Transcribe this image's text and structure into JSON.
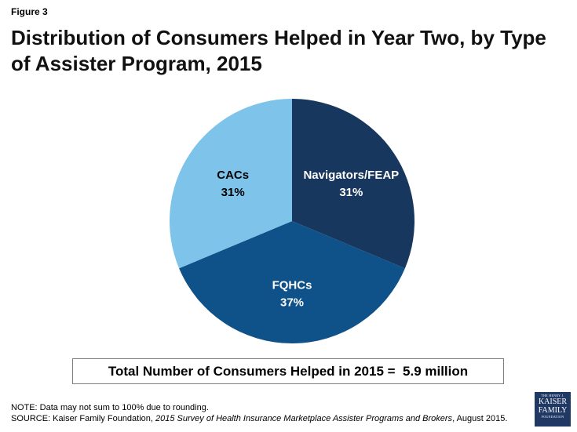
{
  "figure_label": "Figure 3",
  "title": "Distribution of Consumers Helped in Year Two, by Type of Assister Program, 2015",
  "chart_data": {
    "type": "pie",
    "title": "",
    "slices": [
      {
        "label": "Navigators/FEAP",
        "value": 31,
        "display": "31%",
        "color": "#17375e",
        "label_color": "#ffffff"
      },
      {
        "label": "FQHCs",
        "value": 37,
        "display": "37%",
        "color": "#0f5189",
        "label_color": "#ffffff"
      },
      {
        "label": "CACs",
        "value": 31,
        "display": "31%",
        "color": "#7dc3ea",
        "label_color": "#000000"
      }
    ],
    "start_angle_deg": 0,
    "direction": "clockwise"
  },
  "total_box": "Total Number of Consumers Helped in 2015 =  5.9 million",
  "note": "NOTE: Data may not sum to 100% due to rounding.",
  "source": {
    "prefix": "SOURCE: Kaiser Family Foundation, ",
    "italic": "2015 Survey of Health Insurance Marketplace Assister Programs and Brokers",
    "suffix": ", August 2015."
  },
  "logo": {
    "line1": "THE HENRY J.",
    "line2": "KAISER",
    "line3": "FAMILY",
    "line4": "FOUNDATION"
  }
}
